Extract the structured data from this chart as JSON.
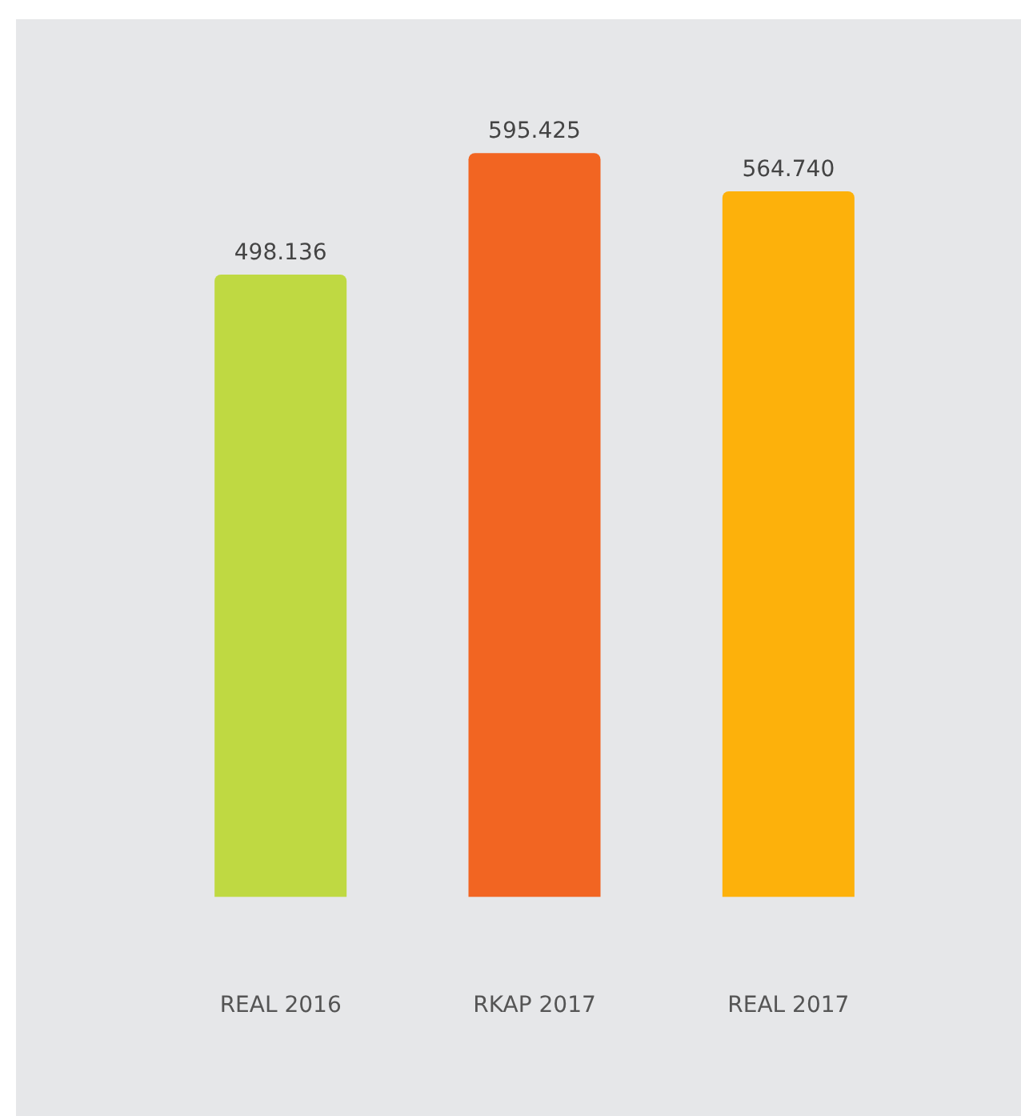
{
  "chart_data": {
    "type": "bar",
    "categories": [
      "REAL 2016",
      "RKAP 2017",
      "REAL 2017"
    ],
    "values": [
      498136,
      595425,
      564740
    ],
    "value_labels": [
      "498.136",
      "595.425",
      "564.740"
    ],
    "colors": [
      "#bfd942",
      "#f26522",
      "#fdb10b"
    ],
    "grid": false,
    "legend": false
  }
}
